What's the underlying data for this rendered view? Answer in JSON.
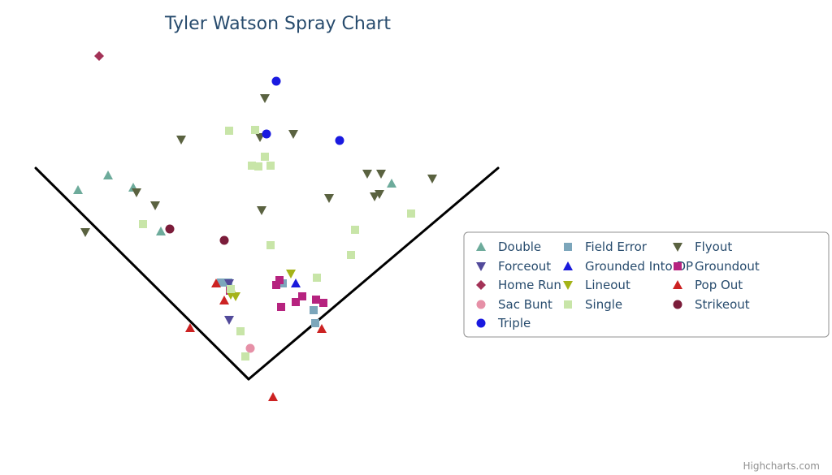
{
  "chart_data": {
    "type": "scatter",
    "title": "Tyler Watson Spray Chart",
    "credits": "Highcharts.com",
    "grid": false,
    "legend_position": "right",
    "field_lines": {
      "home_plate": [
        0,
        0
      ],
      "left_foul_line_end": [
        -262,
        260
      ],
      "right_foul_line_end": [
        307,
        260
      ]
    },
    "series": [
      {
        "name": "Double",
        "symbol": "triangle",
        "color": "#6dab9b",
        "points": [
          [
            -210,
            233
          ],
          [
            -173,
            251
          ],
          [
            -142,
            236
          ],
          [
            -108,
            182
          ],
          [
            176,
            241
          ]
        ]
      },
      {
        "name": "Field Error",
        "symbol": "square",
        "color": "#7ca6bb",
        "points": [
          [
            -34,
            119
          ],
          [
            -25,
            119
          ],
          [
            80,
            85
          ],
          [
            82,
            69
          ],
          [
            42,
            118
          ]
        ]
      },
      {
        "name": "Flyout",
        "symbol": "triangle-down",
        "color": "#5a6240",
        "points": [
          [
            20,
            346
          ],
          [
            -83,
            295
          ],
          [
            55,
            302
          ],
          [
            14,
            298
          ],
          [
            146,
            253
          ],
          [
            163,
            253
          ],
          [
            226,
            247
          ],
          [
            99,
            223
          ],
          [
            155,
            225
          ],
          [
            161,
            228
          ],
          [
            -138,
            230
          ],
          [
            -115,
            214
          ],
          [
            -201,
            181
          ],
          [
            16,
            208
          ]
        ]
      },
      {
        "name": "Forceout",
        "symbol": "triangle-down",
        "color": "#524a9a",
        "points": [
          [
            -24,
            118
          ],
          [
            -24,
            73
          ]
        ]
      },
      {
        "name": "Grounded Into DP",
        "symbol": "triangle",
        "color": "#1a1adb",
        "points": [
          [
            58,
            118
          ]
        ]
      },
      {
        "name": "Groundout",
        "symbol": "square",
        "color": "#b6237f",
        "points": [
          [
            34,
            116
          ],
          [
            38,
            122
          ],
          [
            58,
            95
          ],
          [
            66,
            102
          ],
          [
            83,
            98
          ],
          [
            92,
            94
          ],
          [
            40,
            89
          ],
          [
            -23,
            109
          ]
        ]
      },
      {
        "name": "Home Run",
        "symbol": "diamond",
        "color": "#a33257",
        "points": [
          [
            -184,
            398
          ]
        ]
      },
      {
        "name": "Lineout",
        "symbol": "triangle-down",
        "color": "#a4b318",
        "points": [
          [
            52,
            130
          ],
          [
            -16,
            102
          ],
          [
            -22,
            104
          ]
        ]
      },
      {
        "name": "Pop Out",
        "symbol": "triangle",
        "color": "#cc2222",
        "points": [
          [
            -40,
            118
          ],
          [
            -30,
            97
          ],
          [
            -72,
            63
          ],
          [
            90,
            62
          ],
          [
            30,
            -22
          ]
        ]
      },
      {
        "name": "Sac Bunt",
        "symbol": "circle",
        "color": "#e690a7",
        "points": [
          [
            2,
            38
          ]
        ]
      },
      {
        "name": "Single",
        "symbol": "square",
        "color": "#c8e5a8",
        "points": [
          [
            -24,
            306
          ],
          [
            8,
            307
          ],
          [
            20,
            274
          ],
          [
            4,
            263
          ],
          [
            12,
            262
          ],
          [
            27,
            263
          ],
          [
            -130,
            191
          ],
          [
            131,
            184
          ],
          [
            200,
            204
          ],
          [
            27,
            165
          ],
          [
            126,
            153
          ],
          [
            84,
            125
          ],
          [
            -22,
            111
          ],
          [
            -10,
            59
          ],
          [
            -4,
            28
          ]
        ]
      },
      {
        "name": "Strikeout",
        "symbol": "circle",
        "color": "#7b1c3a",
        "points": [
          [
            -97,
            185
          ],
          [
            -30,
            171
          ]
        ]
      },
      {
        "name": "Triple",
        "symbol": "circle",
        "color": "#1a1ae0",
        "points": [
          [
            34,
            367
          ],
          [
            22,
            302
          ],
          [
            112,
            294
          ]
        ]
      }
    ]
  }
}
